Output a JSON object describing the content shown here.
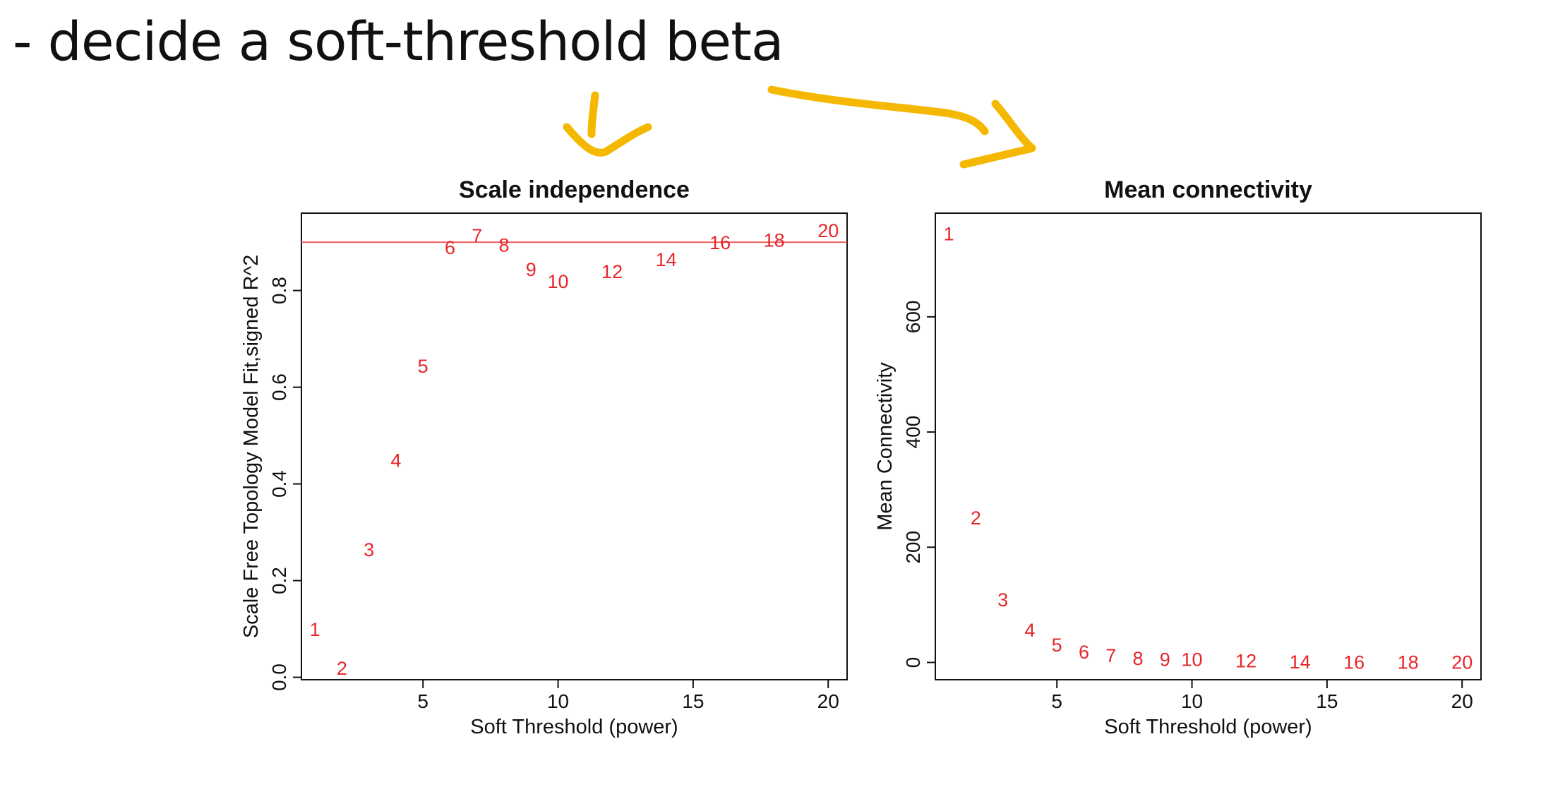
{
  "heading": "- decide a soft-threshold beta",
  "colors": {
    "points": "#e8262a",
    "hline": "#f0605f",
    "arrows": "#f5b800",
    "axis": "#111111"
  },
  "annotations": [
    "down-arrow",
    "right-arrow"
  ],
  "chart_data": [
    {
      "type": "scatter",
      "title": "Scale independence",
      "xlabel": "Soft Threshold (power)",
      "ylabel": "Scale Free Topology Model Fit,signed R^2",
      "xlim": [
        0.5,
        20.7
      ],
      "ylim": [
        -0.005,
        0.96
      ],
      "xticks": [
        5,
        10,
        15,
        20
      ],
      "yticks": [
        0.0,
        0.2,
        0.4,
        0.6,
        0.8
      ],
      "hline": 0.9,
      "grid": false,
      "legend": "none",
      "points": [
        {
          "label": "1",
          "x": 1,
          "y": 0.1
        },
        {
          "label": "2",
          "x": 2,
          "y": 0.02
        },
        {
          "label": "3",
          "x": 3,
          "y": 0.265
        },
        {
          "label": "4",
          "x": 4,
          "y": 0.45
        },
        {
          "label": "5",
          "x": 5,
          "y": 0.645
        },
        {
          "label": "6",
          "x": 6,
          "y": 0.89
        },
        {
          "label": "7",
          "x": 7,
          "y": 0.915
        },
        {
          "label": "8",
          "x": 8,
          "y": 0.895
        },
        {
          "label": "9",
          "x": 9,
          "y": 0.845
        },
        {
          "label": "10",
          "x": 10,
          "y": 0.82
        },
        {
          "label": "12",
          "x": 12,
          "y": 0.84
        },
        {
          "label": "14",
          "x": 14,
          "y": 0.865
        },
        {
          "label": "16",
          "x": 16,
          "y": 0.9
        },
        {
          "label": "18",
          "x": 18,
          "y": 0.905
        },
        {
          "label": "20",
          "x": 20,
          "y": 0.925
        }
      ]
    },
    {
      "type": "scatter",
      "title": "Mean connectivity",
      "xlabel": "Soft Threshold (power)",
      "ylabel": "Mean Connectivity",
      "xlim": [
        0.5,
        20.7
      ],
      "ylim": [
        -30,
        780
      ],
      "xticks": [
        5,
        10,
        15,
        20
      ],
      "yticks": [
        0,
        200,
        400,
        600
      ],
      "grid": false,
      "legend": "none",
      "points": [
        {
          "label": "1",
          "x": 1,
          "y": 745
        },
        {
          "label": "2",
          "x": 2,
          "y": 252
        },
        {
          "label": "3",
          "x": 3,
          "y": 110
        },
        {
          "label": "4",
          "x": 4,
          "y": 57
        },
        {
          "label": "5",
          "x": 5,
          "y": 31
        },
        {
          "label": "6",
          "x": 6,
          "y": 19
        },
        {
          "label": "7",
          "x": 7,
          "y": 13
        },
        {
          "label": "8",
          "x": 8,
          "y": 8
        },
        {
          "label": "9",
          "x": 9,
          "y": 6
        },
        {
          "label": "10",
          "x": 10,
          "y": 6
        },
        {
          "label": "12",
          "x": 12,
          "y": 4
        },
        {
          "label": "14",
          "x": 14,
          "y": 2
        },
        {
          "label": "16",
          "x": 16,
          "y": 1
        },
        {
          "label": "18",
          "x": 18,
          "y": 1
        },
        {
          "label": "20",
          "x": 20,
          "y": 1
        }
      ]
    }
  ]
}
